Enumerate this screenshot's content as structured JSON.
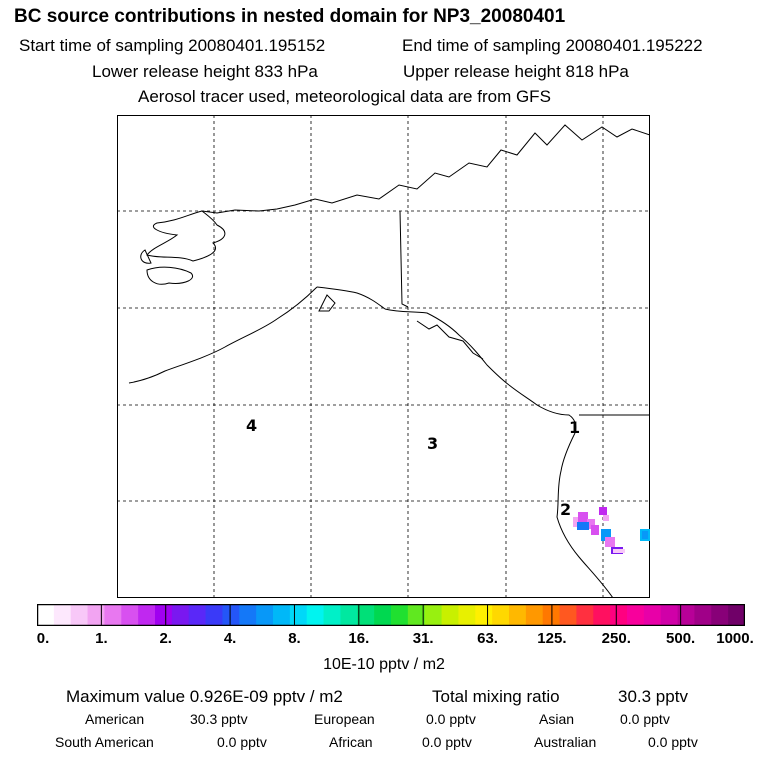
{
  "header": {
    "title": "BC  source contributions in nested domain for NP3_20080401",
    "start_time": "Start time of sampling 20080401.195152",
    "end_time": "End time of sampling 20080401.195222",
    "lower_height": "Lower release height  833 hPa",
    "upper_height": "Upper release height  818 hPa",
    "tracer_note": "Aerosol tracer used, meteorological data are from GFS"
  },
  "chart_data": {
    "type": "heatmap",
    "title": "BC  source contributions in nested domain for NP3_20080401",
    "region_labels": [
      "4",
      "3",
      "2",
      "1"
    ],
    "colorbar": {
      "tick_labels": [
        "0.",
        "1.",
        "2.",
        "4.",
        "8.",
        "16.",
        "31.",
        "63.",
        "125.",
        "250.",
        "500.",
        "1000."
      ],
      "units": "10E-10 pptv / m2",
      "colors": [
        "#ffffff",
        "#fde8fd",
        "#f8c8f8",
        "#f2a4f2",
        "#e878f0",
        "#d850f0",
        "#c028f0",
        "#a000f0",
        "#7a18f0",
        "#5a28f8",
        "#3a3af8",
        "#2456f8",
        "#1478f8",
        "#0898f8",
        "#00b8f8",
        "#00d8f8",
        "#00f4f0",
        "#00f0c8",
        "#00e8a0",
        "#00e078",
        "#00d850",
        "#20e030",
        "#60e820",
        "#98f010",
        "#c8f000",
        "#e8f000",
        "#fff000",
        "#ffd800",
        "#ffb800",
        "#ff9800",
        "#ff7800",
        "#ff5820",
        "#ff3040",
        "#ff1060",
        "#ff0080",
        "#f8009c",
        "#e800a8",
        "#d000a8",
        "#b80098",
        "#a00088",
        "#880078",
        "#700068"
      ]
    }
  },
  "stats": {
    "max_value": "Maximum value  0.926E-09 pptv / m2",
    "total_label": "Total mixing ratio",
    "total_value": "30.3 pptv",
    "american_label": "American",
    "american_value": "30.3 pptv",
    "european_label": "European",
    "european_value": "0.0 pptv",
    "asian_label": "Asian",
    "asian_value": "0.0 pptv",
    "south_american_label": "South American",
    "south_american_value": "0.0 pptv",
    "african_label": "African",
    "african_value": "0.0 pptv",
    "australian_label": "Australian",
    "australian_value": "0.0 pptv"
  }
}
